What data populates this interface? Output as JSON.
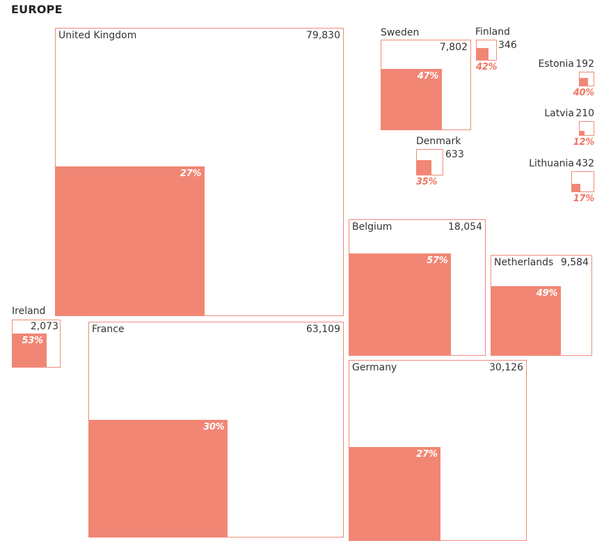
{
  "title": "EUROPE",
  "colors": {
    "fill": "#f28674",
    "border": "#ef8a7b",
    "pct_text": "#ef7563"
  },
  "chart_data": {
    "type": "proportional-area",
    "title": "EUROPE",
    "value_label": "total",
    "share_label": "highlighted share (%)",
    "countries": [
      {
        "name": "United Kingdom",
        "value_text": "79,830",
        "value": 79830,
        "pct_text": "27%",
        "pct": 27
      },
      {
        "name": "France",
        "value_text": "63,109",
        "value": 63109,
        "pct_text": "30%",
        "pct": 30
      },
      {
        "name": "Germany",
        "value_text": "30,126",
        "value": 30126,
        "pct_text": "27%",
        "pct": 27
      },
      {
        "name": "Belgium",
        "value_text": "18,054",
        "value": 18054,
        "pct_text": "57%",
        "pct": 57
      },
      {
        "name": "Netherlands",
        "value_text": "9,584",
        "value": 9584,
        "pct_text": "49%",
        "pct": 49
      },
      {
        "name": "Sweden",
        "value_text": "7,802",
        "value": 7802,
        "pct_text": "47%",
        "pct": 47
      },
      {
        "name": "Ireland",
        "value_text": "2,073",
        "value": 2073,
        "pct_text": "53%",
        "pct": 53
      },
      {
        "name": "Denmark",
        "value_text": "633",
        "value": 633,
        "pct_text": "35%",
        "pct": 35
      },
      {
        "name": "Lithuania",
        "value_text": "432",
        "value": 432,
        "pct_text": "17%",
        "pct": 17
      },
      {
        "name": "Finland",
        "value_text": "346",
        "value": 346,
        "pct_text": "42%",
        "pct": 42
      },
      {
        "name": "Latvia",
        "value_text": "210",
        "value": 210,
        "pct_text": "12%",
        "pct": 12
      },
      {
        "name": "Estonia",
        "value_text": "192",
        "value": 192,
        "pct_text": "40%",
        "pct": 40
      }
    ]
  }
}
